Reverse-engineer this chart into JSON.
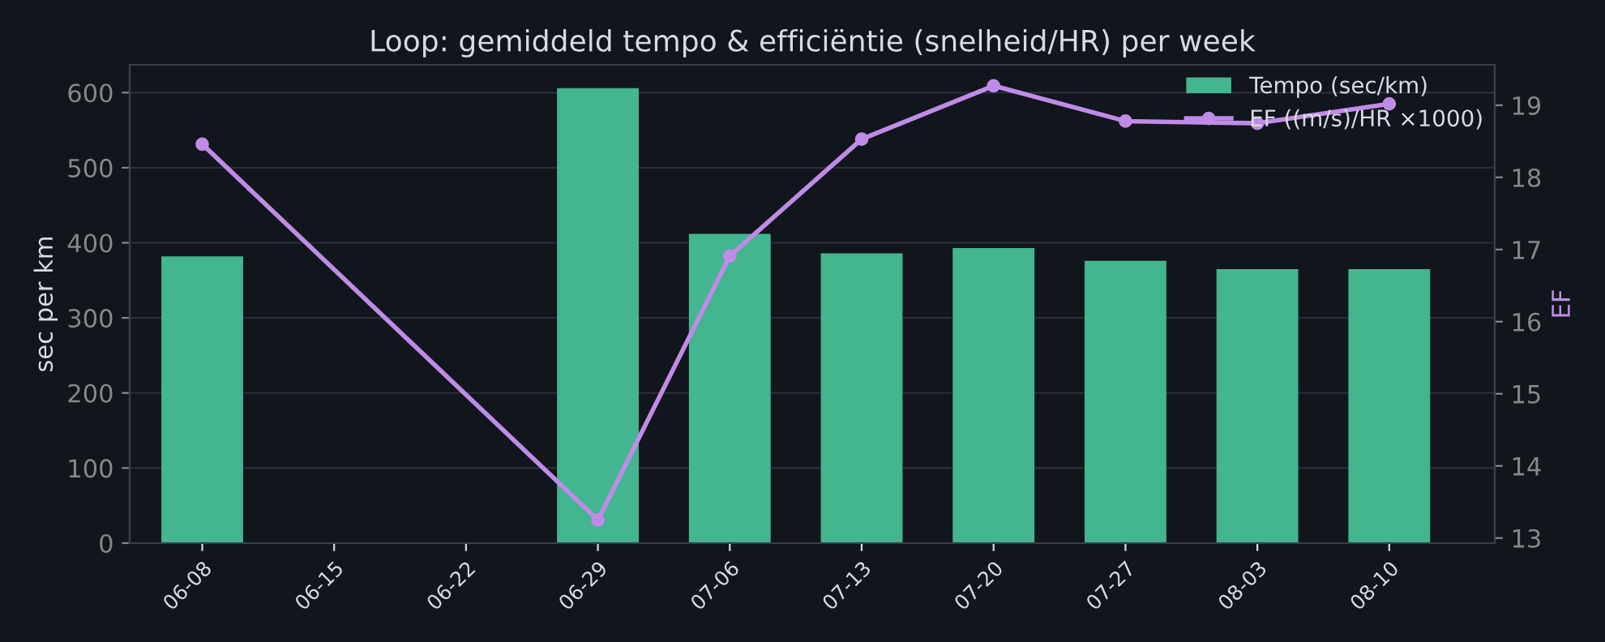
{
  "chart_data": {
    "type": "bar",
    "title": "Loop: gemiddeld tempo & efficiëntie (snelheid/HR) per week",
    "ylabel": "sec per km",
    "y2label": "EF",
    "categories": [
      "06-08",
      "06-15",
      "06-22",
      "06-29",
      "07-06",
      "07-13",
      "07-20",
      "07-27",
      "08-03",
      "08-10"
    ],
    "series": [
      {
        "name": "Tempo (sec/km)",
        "color": "#43b58f",
        "values": [
          382,
          null,
          null,
          606,
          412,
          386,
          393,
          376,
          365,
          365
        ]
      },
      {
        "name": "EF ((m/s)/HR ×1000)",
        "type": "line",
        "axis": "y2",
        "color": "#c08be8",
        "marker": "circle",
        "values": [
          18.46,
          null,
          null,
          13.25,
          16.91,
          18.53,
          19.27,
          18.78,
          18.75,
          19.02
        ]
      }
    ],
    "ylim": [
      0,
      637
    ],
    "yticks": [
      0,
      100,
      200,
      300,
      400,
      500,
      600
    ],
    "y2lim": [
      12.93,
      19.56
    ],
    "y2ticks": [
      13,
      14,
      15,
      16,
      17,
      18,
      19
    ],
    "grid": "y",
    "legend": "top right"
  }
}
